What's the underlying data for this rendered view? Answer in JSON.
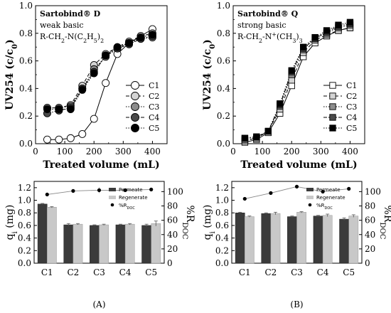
{
  "chart_data": [
    {
      "type": "line",
      "panel": "A-top",
      "xlabel": "Treated volume (mL)",
      "ylabel": "UV254 (c/c0)",
      "xlim": [
        0,
        450
      ],
      "ylim": [
        0,
        1.0
      ],
      "xticks": [
        0,
        100,
        200,
        300,
        400
      ],
      "yticks": [
        0.0,
        0.2,
        0.4,
        0.6,
        0.8,
        1.0
      ],
      "annotation": {
        "title": "Sartobind® D",
        "line1": "weak basic",
        "line2": "R-CH2-N(C2H5)2"
      },
      "legend_position": "right",
      "x": [
        40,
        80,
        120,
        160,
        200,
        240,
        280,
        320,
        360,
        400
      ],
      "series": [
        {
          "name": "C1",
          "marker": "open-circle",
          "dash": "solid",
          "values": [
            0.03,
            0.03,
            0.04,
            0.07,
            0.18,
            0.44,
            0.65,
            0.73,
            0.78,
            0.83
          ]
        },
        {
          "name": "C2",
          "marker": "light-gray-circle",
          "dash": "dashed",
          "values": [
            0.26,
            0.26,
            0.28,
            0.42,
            0.57,
            0.65,
            0.7,
            0.74,
            0.78,
            0.8
          ]
        },
        {
          "name": "C3",
          "marker": "gray-circle",
          "dash": "dotted",
          "values": [
            0.26,
            0.26,
            0.27,
            0.4,
            0.54,
            0.63,
            0.69,
            0.73,
            0.76,
            0.77
          ]
        },
        {
          "name": "C4",
          "marker": "dark-gray-circle",
          "dash": "dashdot",
          "values": [
            0.22,
            0.24,
            0.26,
            0.4,
            0.52,
            0.64,
            0.69,
            0.72,
            0.76,
            0.78
          ]
        },
        {
          "name": "C5",
          "marker": "black-circle",
          "dash": "dotted",
          "values": [
            0.25,
            0.25,
            0.25,
            0.39,
            0.51,
            0.64,
            0.7,
            0.73,
            0.77,
            0.79
          ]
        }
      ]
    },
    {
      "type": "line",
      "panel": "B-top",
      "xlabel": "Treated volume (mL)",
      "ylabel": "UV254 (c/c0)",
      "xlim": [
        0,
        450
      ],
      "ylim": [
        0,
        1.0
      ],
      "xticks": [
        0,
        100,
        200,
        300,
        400
      ],
      "yticks": [
        0.0,
        0.2,
        0.4,
        0.6,
        0.8,
        1.0
      ],
      "annotation": {
        "title": "Sartobind® Q",
        "line1": "strong basic",
        "line2": "R-CH2-N+(CH3)3"
      },
      "legend_position": "right",
      "x": [
        40,
        80,
        120,
        160,
        200,
        240,
        280,
        320,
        360,
        400
      ],
      "series": [
        {
          "name": "C1",
          "marker": "open-square",
          "dash": "solid",
          "values": [
            0.01,
            0.03,
            0.08,
            0.22,
            0.42,
            0.63,
            0.73,
            0.78,
            0.82,
            0.84
          ]
        },
        {
          "name": "C2",
          "marker": "light-gray-square",
          "dash": "dashed",
          "values": [
            0.02,
            0.04,
            0.09,
            0.25,
            0.46,
            0.66,
            0.75,
            0.79,
            0.82,
            0.84
          ]
        },
        {
          "name": "C3",
          "marker": "gray-square",
          "dash": "dotted",
          "values": [
            0.03,
            0.04,
            0.09,
            0.27,
            0.5,
            0.68,
            0.77,
            0.8,
            0.84,
            0.86
          ]
        },
        {
          "name": "C4",
          "marker": "dark-gray-square",
          "dash": "dashdot",
          "values": [
            0.04,
            0.05,
            0.09,
            0.28,
            0.52,
            0.69,
            0.76,
            0.81,
            0.85,
            0.87
          ]
        },
        {
          "name": "C5",
          "marker": "black-square",
          "dash": "dotted",
          "values": [
            0.04,
            0.05,
            0.09,
            0.29,
            0.53,
            0.7,
            0.77,
            0.82,
            0.86,
            0.88
          ]
        }
      ]
    },
    {
      "type": "bar",
      "panel": "A-bottom",
      "categories": [
        "C1",
        "C2",
        "C3",
        "C4",
        "C5"
      ],
      "ylabel": "qi (mg)",
      "ylabel_right": "%RDOC",
      "ylim": [
        0,
        1.3
      ],
      "yticks": [
        0.0,
        0.2,
        0.4,
        0.6,
        0.8,
        1.0,
        1.2
      ],
      "ylim_right": [
        0,
        114.3
      ],
      "yticks_right": [
        0,
        20,
        40,
        60,
        80,
        100
      ],
      "legend_position": "right",
      "series": [
        {
          "name": "Permeate",
          "values": [
            0.94,
            0.61,
            0.6,
            0.61,
            0.6
          ],
          "error": [
            0.01,
            0.02,
            0.01,
            0.01,
            0.02
          ]
        },
        {
          "name": "Regenerate",
          "values": [
            0.89,
            0.62,
            0.61,
            0.62,
            0.63
          ],
          "error": [
            0.01,
            0.01,
            0.01,
            0.01,
            0.04
          ]
        },
        {
          "name": "%RDOC",
          "axis": "right",
          "values": [
            96,
            101,
            102,
            102,
            103
          ],
          "error": [
            1,
            1,
            4,
            1,
            1
          ]
        }
      ],
      "panel_label": "(A)"
    },
    {
      "type": "bar",
      "panel": "B-bottom",
      "categories": [
        "C1",
        "C2",
        "C3",
        "C4",
        "C5"
      ],
      "ylabel": "qi (mg)",
      "ylabel_right": "%RDOC",
      "ylim": [
        0,
        1.3
      ],
      "yticks": [
        0.0,
        0.2,
        0.4,
        0.6,
        0.8,
        1.0,
        1.2
      ],
      "ylim_right": [
        0,
        114.3
      ],
      "yticks_right": [
        0,
        20,
        40,
        60,
        80,
        100
      ],
      "legend_position": "right",
      "series": [
        {
          "name": "Permeate",
          "values": [
            0.8,
            0.79,
            0.74,
            0.75,
            0.7
          ],
          "error": [
            0.01,
            0.01,
            0.01,
            0.01,
            0.02
          ]
        },
        {
          "name": "Regenerate",
          "values": [
            0.74,
            0.79,
            0.81,
            0.76,
            0.75
          ],
          "error": [
            0.01,
            0.02,
            0.01,
            0.02,
            0.02
          ]
        },
        {
          "name": "%RDOC",
          "axis": "right",
          "values": [
            90,
            98,
            107,
            100,
            104
          ],
          "error": [
            1,
            1,
            2,
            1,
            1
          ]
        }
      ],
      "panel_label": "(B)"
    }
  ]
}
